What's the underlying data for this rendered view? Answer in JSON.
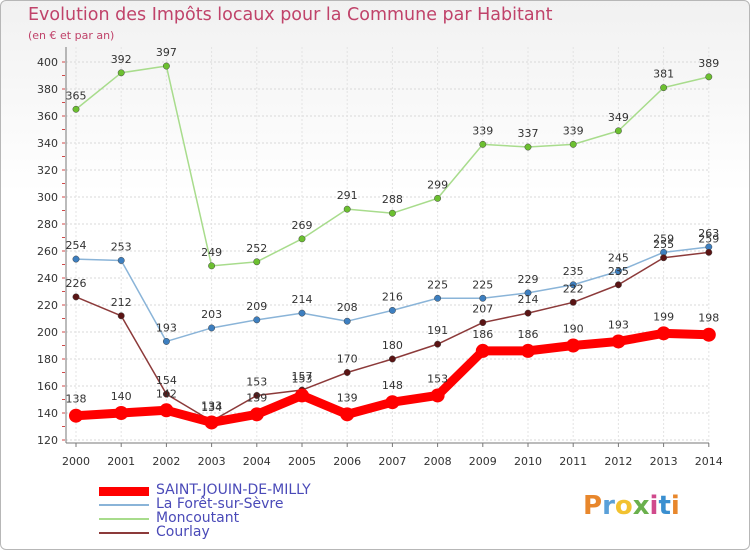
{
  "header": {
    "title": "Evolution des Impôts locaux pour la Commune par Habitant",
    "subtitle": "(en € et par an)"
  },
  "logo": {
    "letters": [
      "P",
      "r",
      "o",
      "x",
      "i",
      "t",
      "i"
    ],
    "colors": [
      "#e8872c",
      "#5aa0d8",
      "#f2c230",
      "#6ab04c",
      "#d04a8c",
      "#3a8fd0",
      "#e8872c"
    ]
  },
  "chart_data": {
    "type": "line",
    "title": "Evolution des Impôts locaux pour la Commune par Habitant",
    "subtitle": "(en € et par an)",
    "x": [
      2000,
      2001,
      2002,
      2003,
      2004,
      2005,
      2006,
      2007,
      2008,
      2009,
      2010,
      2011,
      2012,
      2013,
      2014
    ],
    "x_tick_labels": [
      "2000",
      "2001",
      "2002",
      "2003",
      "2004",
      "2005",
      "2006",
      "2007",
      "2008",
      "2009",
      "2010",
      "2011",
      "2012",
      "2013",
      "2014"
    ],
    "ylim": [
      120,
      400
    ],
    "y_ticks": [
      120,
      140,
      160,
      180,
      200,
      220,
      240,
      260,
      280,
      300,
      320,
      340,
      360,
      380,
      400
    ],
    "y_tick_labels": [
      "120",
      "140",
      "160",
      "180",
      "200",
      "220",
      "240",
      "260",
      "280",
      "300",
      "320",
      "340",
      "360",
      "380",
      "400"
    ],
    "grid": true,
    "legend_position": "bottom-left",
    "series": [
      {
        "name": "SAINT-JOUIN-DE-MILLY",
        "color": "#ff0000",
        "point_color": "#ff0000",
        "emphasis": true,
        "values": [
          138,
          140,
          142,
          133,
          139,
          153,
          139,
          148,
          153,
          186,
          186,
          190,
          193,
          199,
          198
        ],
        "labels": [
          "138",
          "140",
          "142",
          "133",
          "139",
          "153",
          "139",
          "148",
          "153",
          "186",
          "186",
          "190",
          "193",
          "199",
          "198"
        ]
      },
      {
        "name": "La Forêt-sur-Sèvre",
        "color": "#8ab4d8",
        "point_color": "#3d7fc0",
        "values": [
          254,
          253,
          193,
          203,
          209,
          214,
          208,
          216,
          225,
          225,
          229,
          235,
          245,
          259,
          263
        ],
        "labels": [
          "254",
          "253",
          "193",
          "203",
          "209",
          "214",
          "208",
          "216",
          "225",
          "225",
          "229",
          "235",
          "245",
          "259",
          "263"
        ]
      },
      {
        "name": "Moncoutant",
        "color": "#a8dc8c",
        "point_color": "#6cc030",
        "values": [
          365,
          392,
          397,
          249,
          252,
          269,
          291,
          288,
          299,
          339,
          337,
          339,
          349,
          381,
          389
        ],
        "labels": [
          "365",
          "392",
          "397",
          "249",
          "252",
          "269",
          "291",
          "288",
          "299",
          "339",
          "337",
          "339",
          "349",
          "381",
          "389"
        ]
      },
      {
        "name": "Courlay",
        "color": "#8c3a3a",
        "point_color": "#5a1414",
        "values": [
          226,
          212,
          154,
          134,
          153,
          157,
          170,
          180,
          191,
          207,
          214,
          222,
          235,
          255,
          259
        ],
        "labels": [
          "226",
          "212",
          "154",
          "134",
          "153",
          "157",
          "170",
          "180",
          "191",
          "207",
          "214",
          "222",
          "235",
          "255",
          "259"
        ]
      }
    ]
  }
}
